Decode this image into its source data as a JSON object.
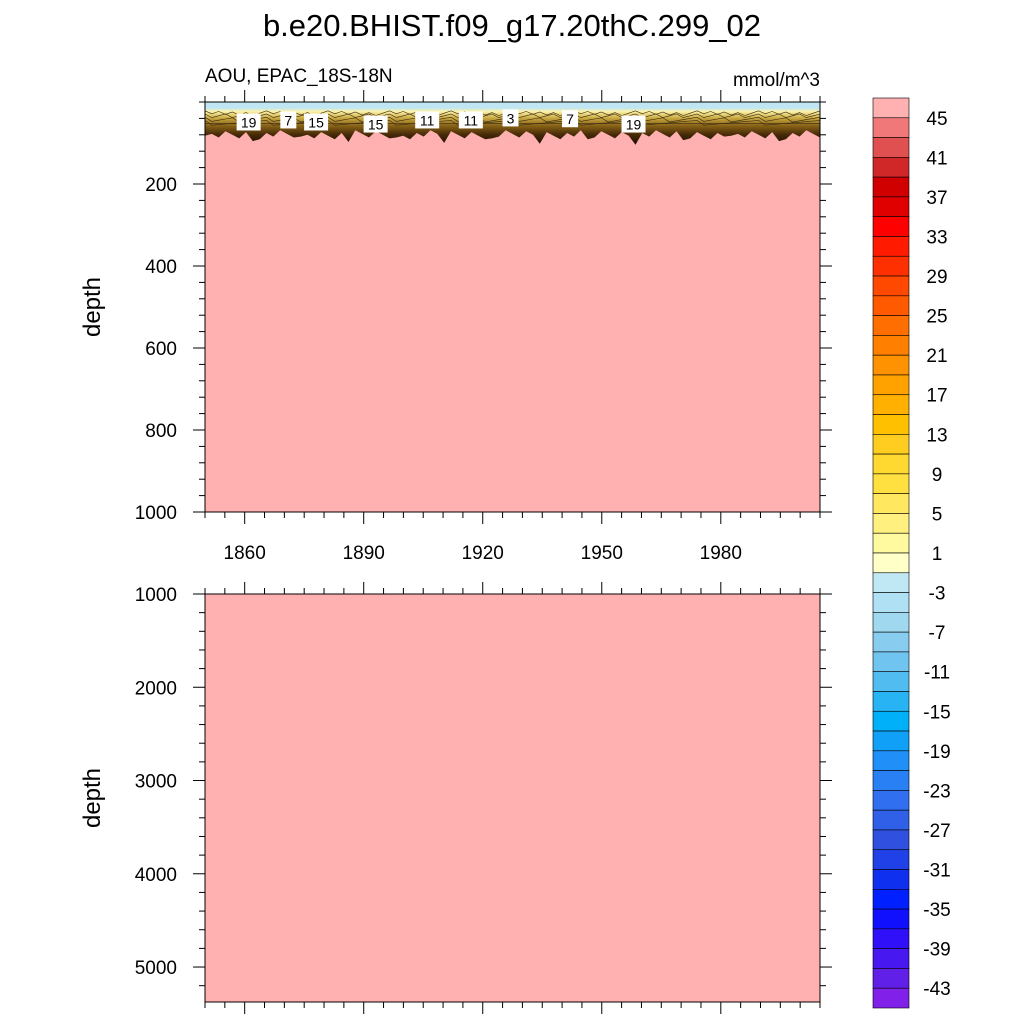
{
  "chart_data": {
    "type": "heatmap",
    "title": "b.e20.BHIST.f09_g17.20thC.299_02",
    "subtitle_left": "AOU, EPAC_18S-18N",
    "subtitle_right": "mmol/m^3",
    "panels": [
      {
        "name": "upper",
        "ylabel": "depth",
        "xlim": [
          1850,
          2005
        ],
        "ylim": [
          1000,
          0
        ],
        "yticks": [
          200,
          400,
          600,
          800,
          1000
        ],
        "xticks": [
          1860,
          1890,
          1920,
          1950,
          1980
        ],
        "fill_value_color": "#ffb0b0",
        "surface_layer_depth": 80,
        "contour_labels": [
          {
            "text": "19",
            "x": 1861,
            "depth": 50
          },
          {
            "text": "7",
            "x": 1871,
            "depth": 45
          },
          {
            "text": "15",
            "x": 1878,
            "depth": 50
          },
          {
            "text": "15",
            "x": 1893,
            "depth": 55
          },
          {
            "text": "11",
            "x": 1906,
            "depth": 45
          },
          {
            "text": "11",
            "x": 1917,
            "depth": 45
          },
          {
            "text": "3",
            "x": 1927,
            "depth": 40
          },
          {
            "text": "7",
            "x": 1942,
            "depth": 42
          },
          {
            "text": "19",
            "x": 1958,
            "depth": 55
          }
        ]
      },
      {
        "name": "lower",
        "ylabel": "depth",
        "xlim": [
          1850,
          2005
        ],
        "ylim": [
          5375,
          1000
        ],
        "yticks": [
          1000,
          2000,
          3000,
          4000,
          5000
        ],
        "xticks": [
          1860,
          1890,
          1920,
          1950,
          1980
        ],
        "fill_value_color": "#ffb0b0"
      }
    ],
    "colorbar": {
      "tick_labels": [
        "45",
        "41",
        "37",
        "33",
        "29",
        "25",
        "21",
        "17",
        "13",
        "9",
        "5",
        "1",
        "-3",
        "-7",
        "-11",
        "-15",
        "-19",
        "-23",
        "-27",
        "-31",
        "-35",
        "-39",
        "-43"
      ],
      "colors": [
        "#ffb0b0",
        "#f07878",
        "#e05050",
        "#d02828",
        "#d00000",
        "#e00000",
        "#ff0000",
        "#ff1a00",
        "#ff3000",
        "#ff4800",
        "#ff5a00",
        "#ff6e00",
        "#ff8000",
        "#ff9200",
        "#ffa200",
        "#ffb000",
        "#ffc000",
        "#ffcc20",
        "#ffd830",
        "#ffe040",
        "#ffe860",
        "#fff080",
        "#fffaa0",
        "#ffffc8",
        "#c0e8f4",
        "#b0e0f4",
        "#a0d8f0",
        "#88ccf0",
        "#70c4f0",
        "#50bcf0",
        "#28b4f4",
        "#00b0f8",
        "#10a0f8",
        "#2090f8",
        "#2880f4",
        "#3070f0",
        "#3060e8",
        "#3050e0",
        "#2040e8",
        "#1030f0",
        "#0020ff",
        "#1010ff",
        "#3010f8",
        "#4818f0",
        "#6020e8",
        "#8020e8"
      ]
    }
  }
}
